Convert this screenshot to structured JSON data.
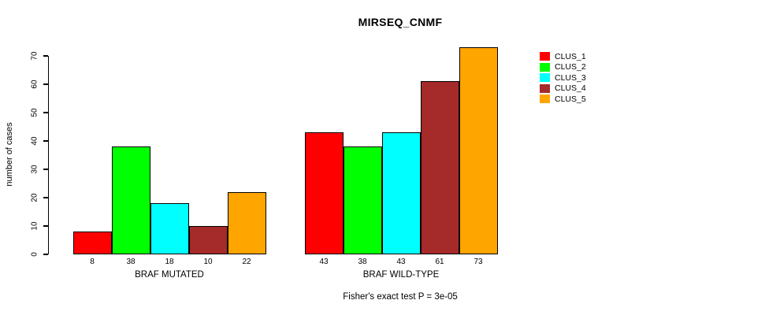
{
  "chart_data": {
    "type": "bar",
    "title": "MIRSEQ_CNMF",
    "ylabel": "number of cases",
    "xlabel": "",
    "categories": [
      "BRAF MUTATED",
      "BRAF WILD-TYPE"
    ],
    "series": [
      {
        "name": "CLUS_1",
        "color": "#FF0000",
        "values": [
          8,
          43
        ]
      },
      {
        "name": "CLUS_2",
        "color": "#00FF00",
        "values": [
          38,
          38
        ]
      },
      {
        "name": "CLUS_3",
        "color": "#00FFFF",
        "values": [
          18,
          43
        ]
      },
      {
        "name": "CLUS_4",
        "color": "#A52A2A",
        "values": [
          10,
          61
        ]
      },
      {
        "name": "CLUS_5",
        "color": "#FFA500",
        "values": [
          22,
          73
        ]
      }
    ],
    "legend": [
      "CLUS_1",
      "CLUS_2",
      "CLUS_3",
      "CLUS_4",
      "CLUS_5"
    ],
    "yticks": [
      0,
      10,
      20,
      30,
      40,
      50,
      60,
      70
    ],
    "ylim": [
      0,
      75
    ],
    "grid": false,
    "legend_position": "right",
    "show_value_labels": true,
    "value_labels": [
      [
        8,
        38,
        18,
        10,
        22
      ],
      [
        43,
        38,
        43,
        61,
        73
      ]
    ],
    "annotation": "Fisher's exact test P = 3e-05"
  }
}
